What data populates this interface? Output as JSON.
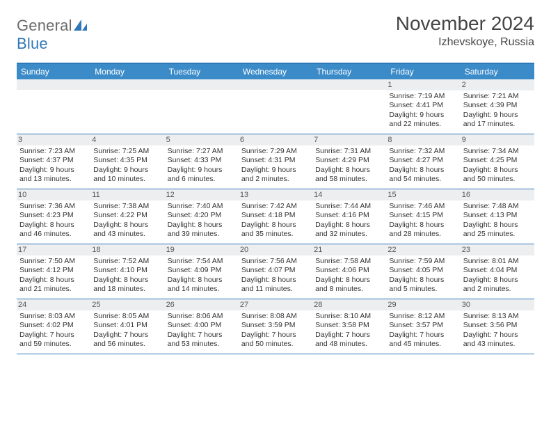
{
  "brand": {
    "part1": "General",
    "part2": "Blue"
  },
  "title": "November 2024",
  "location": "Izhevskoye, Russia",
  "colors": {
    "header_blue": "#3b8bc9",
    "border_blue": "#2f78b7",
    "daybar_gray": "#eceef0",
    "text": "#333333",
    "title_text": "#444444"
  },
  "dow": [
    "Sunday",
    "Monday",
    "Tuesday",
    "Wednesday",
    "Thursday",
    "Friday",
    "Saturday"
  ],
  "weeks": [
    [
      null,
      null,
      null,
      null,
      null,
      {
        "d": "1",
        "sr": "Sunrise: 7:19 AM",
        "ss": "Sunset: 4:41 PM",
        "dl1": "Daylight: 9 hours",
        "dl2": "and 22 minutes."
      },
      {
        "d": "2",
        "sr": "Sunrise: 7:21 AM",
        "ss": "Sunset: 4:39 PM",
        "dl1": "Daylight: 9 hours",
        "dl2": "and 17 minutes."
      }
    ],
    [
      {
        "d": "3",
        "sr": "Sunrise: 7:23 AM",
        "ss": "Sunset: 4:37 PM",
        "dl1": "Daylight: 9 hours",
        "dl2": "and 13 minutes."
      },
      {
        "d": "4",
        "sr": "Sunrise: 7:25 AM",
        "ss": "Sunset: 4:35 PM",
        "dl1": "Daylight: 9 hours",
        "dl2": "and 10 minutes."
      },
      {
        "d": "5",
        "sr": "Sunrise: 7:27 AM",
        "ss": "Sunset: 4:33 PM",
        "dl1": "Daylight: 9 hours",
        "dl2": "and 6 minutes."
      },
      {
        "d": "6",
        "sr": "Sunrise: 7:29 AM",
        "ss": "Sunset: 4:31 PM",
        "dl1": "Daylight: 9 hours",
        "dl2": "and 2 minutes."
      },
      {
        "d": "7",
        "sr": "Sunrise: 7:31 AM",
        "ss": "Sunset: 4:29 PM",
        "dl1": "Daylight: 8 hours",
        "dl2": "and 58 minutes."
      },
      {
        "d": "8",
        "sr": "Sunrise: 7:32 AM",
        "ss": "Sunset: 4:27 PM",
        "dl1": "Daylight: 8 hours",
        "dl2": "and 54 minutes."
      },
      {
        "d": "9",
        "sr": "Sunrise: 7:34 AM",
        "ss": "Sunset: 4:25 PM",
        "dl1": "Daylight: 8 hours",
        "dl2": "and 50 minutes."
      }
    ],
    [
      {
        "d": "10",
        "sr": "Sunrise: 7:36 AM",
        "ss": "Sunset: 4:23 PM",
        "dl1": "Daylight: 8 hours",
        "dl2": "and 46 minutes."
      },
      {
        "d": "11",
        "sr": "Sunrise: 7:38 AM",
        "ss": "Sunset: 4:22 PM",
        "dl1": "Daylight: 8 hours",
        "dl2": "and 43 minutes."
      },
      {
        "d": "12",
        "sr": "Sunrise: 7:40 AM",
        "ss": "Sunset: 4:20 PM",
        "dl1": "Daylight: 8 hours",
        "dl2": "and 39 minutes."
      },
      {
        "d": "13",
        "sr": "Sunrise: 7:42 AM",
        "ss": "Sunset: 4:18 PM",
        "dl1": "Daylight: 8 hours",
        "dl2": "and 35 minutes."
      },
      {
        "d": "14",
        "sr": "Sunrise: 7:44 AM",
        "ss": "Sunset: 4:16 PM",
        "dl1": "Daylight: 8 hours",
        "dl2": "and 32 minutes."
      },
      {
        "d": "15",
        "sr": "Sunrise: 7:46 AM",
        "ss": "Sunset: 4:15 PM",
        "dl1": "Daylight: 8 hours",
        "dl2": "and 28 minutes."
      },
      {
        "d": "16",
        "sr": "Sunrise: 7:48 AM",
        "ss": "Sunset: 4:13 PM",
        "dl1": "Daylight: 8 hours",
        "dl2": "and 25 minutes."
      }
    ],
    [
      {
        "d": "17",
        "sr": "Sunrise: 7:50 AM",
        "ss": "Sunset: 4:12 PM",
        "dl1": "Daylight: 8 hours",
        "dl2": "and 21 minutes."
      },
      {
        "d": "18",
        "sr": "Sunrise: 7:52 AM",
        "ss": "Sunset: 4:10 PM",
        "dl1": "Daylight: 8 hours",
        "dl2": "and 18 minutes."
      },
      {
        "d": "19",
        "sr": "Sunrise: 7:54 AM",
        "ss": "Sunset: 4:09 PM",
        "dl1": "Daylight: 8 hours",
        "dl2": "and 14 minutes."
      },
      {
        "d": "20",
        "sr": "Sunrise: 7:56 AM",
        "ss": "Sunset: 4:07 PM",
        "dl1": "Daylight: 8 hours",
        "dl2": "and 11 minutes."
      },
      {
        "d": "21",
        "sr": "Sunrise: 7:58 AM",
        "ss": "Sunset: 4:06 PM",
        "dl1": "Daylight: 8 hours",
        "dl2": "and 8 minutes."
      },
      {
        "d": "22",
        "sr": "Sunrise: 7:59 AM",
        "ss": "Sunset: 4:05 PM",
        "dl1": "Daylight: 8 hours",
        "dl2": "and 5 minutes."
      },
      {
        "d": "23",
        "sr": "Sunrise: 8:01 AM",
        "ss": "Sunset: 4:04 PM",
        "dl1": "Daylight: 8 hours",
        "dl2": "and 2 minutes."
      }
    ],
    [
      {
        "d": "24",
        "sr": "Sunrise: 8:03 AM",
        "ss": "Sunset: 4:02 PM",
        "dl1": "Daylight: 7 hours",
        "dl2": "and 59 minutes."
      },
      {
        "d": "25",
        "sr": "Sunrise: 8:05 AM",
        "ss": "Sunset: 4:01 PM",
        "dl1": "Daylight: 7 hours",
        "dl2": "and 56 minutes."
      },
      {
        "d": "26",
        "sr": "Sunrise: 8:06 AM",
        "ss": "Sunset: 4:00 PM",
        "dl1": "Daylight: 7 hours",
        "dl2": "and 53 minutes."
      },
      {
        "d": "27",
        "sr": "Sunrise: 8:08 AM",
        "ss": "Sunset: 3:59 PM",
        "dl1": "Daylight: 7 hours",
        "dl2": "and 50 minutes."
      },
      {
        "d": "28",
        "sr": "Sunrise: 8:10 AM",
        "ss": "Sunset: 3:58 PM",
        "dl1": "Daylight: 7 hours",
        "dl2": "and 48 minutes."
      },
      {
        "d": "29",
        "sr": "Sunrise: 8:12 AM",
        "ss": "Sunset: 3:57 PM",
        "dl1": "Daylight: 7 hours",
        "dl2": "and 45 minutes."
      },
      {
        "d": "30",
        "sr": "Sunrise: 8:13 AM",
        "ss": "Sunset: 3:56 PM",
        "dl1": "Daylight: 7 hours",
        "dl2": "and 43 minutes."
      }
    ]
  ]
}
